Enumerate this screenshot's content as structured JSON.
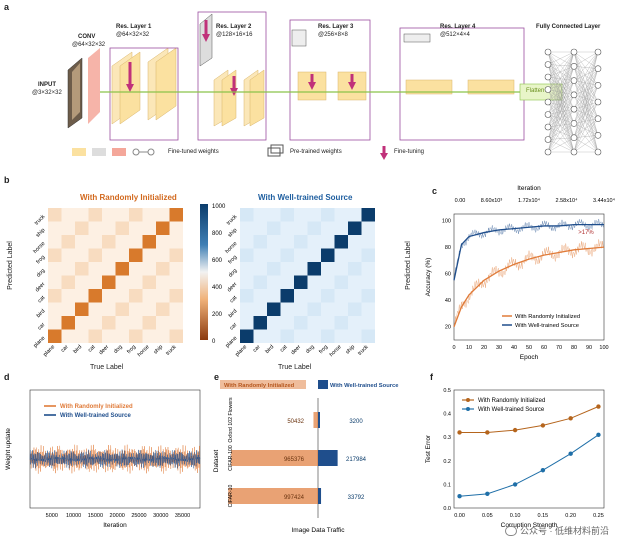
{
  "panel_labels": {
    "a": "a",
    "b": "b",
    "c": "c",
    "d": "d",
    "e": "e",
    "f": "f"
  },
  "arch": {
    "input_title": "INPUT",
    "input_dim": "@3×32×32",
    "conv_title": "CONV",
    "conv_dim": "@64×32×32",
    "res1_title": "Res. Layer 1",
    "res1_dim": "@64×32×32",
    "res2_title": "Res. Layer 2",
    "res2_dim": "@128×16×16",
    "res3_title": "Res. Layer 3",
    "res3_dim": "@256×8×8",
    "res4_title": "Res. Layer 4",
    "res4_dim": "@512×4×4",
    "fc_title": "Fully Connected Layer",
    "flatten": "Flatten",
    "legend_finetuned": "Fine-tuned weights",
    "legend_pretrained": "Pre-trained weights",
    "legend_finetuning": "Fine-tuning"
  },
  "confusion": {
    "left_title": "With Randomly Initialized",
    "right_title": "With Well-trained Source",
    "xlabel": "True Label",
    "ylabel": "Predicted Label",
    "classes": [
      "plane",
      "car",
      "bird",
      "cat",
      "deer",
      "dog",
      "frog",
      "horse",
      "ship",
      "truck"
    ],
    "colorbar_ticks": [
      "1000",
      "800",
      "600",
      "400",
      "200",
      "0"
    ],
    "accent_left": "#d2691e",
    "accent_right": "#0b3c6b"
  },
  "chart_data": [
    {
      "type": "line",
      "panel": "c",
      "title": "",
      "xlabel": "Epoch",
      "ylabel": "Accuracy (%)",
      "top_label": "Iteration",
      "top_ticks": [
        "0.00",
        "8.60x10³",
        "1.72x10⁴",
        "2.58x10⁴",
        "3.44x10⁴"
      ],
      "x_ticks": [
        "0",
        "10",
        "20",
        "30",
        "40",
        "50",
        "60",
        "70",
        "80",
        "90",
        "100"
      ],
      "y_ticks": [
        "20",
        "40",
        "60",
        "80",
        "100"
      ],
      "xlim": [
        0,
        100
      ],
      "ylim": [
        10,
        105
      ],
      "annotation": ">17%",
      "series": [
        {
          "name": "With Randomly Initialized",
          "color": "#e07b39",
          "x": [
            0,
            5,
            10,
            20,
            30,
            40,
            50,
            60,
            70,
            80,
            90,
            100
          ],
          "values": [
            20,
            35,
            44,
            55,
            62,
            67,
            71,
            74,
            76,
            78,
            79,
            80
          ]
        },
        {
          "name": "With Well-trained Source",
          "color": "#1f4e8c",
          "x": [
            0,
            5,
            10,
            20,
            30,
            40,
            50,
            60,
            70,
            80,
            90,
            100
          ],
          "values": [
            55,
            82,
            88,
            91,
            93,
            94,
            95,
            96,
            96,
            97,
            97,
            97
          ]
        }
      ]
    },
    {
      "type": "line",
      "panel": "d",
      "xlabel": "Iteration",
      "ylabel": "Weight update",
      "x_ticks": [
        "5000",
        "10000",
        "15000",
        "20000",
        "25000",
        "30000",
        "35000"
      ],
      "xlim": [
        0,
        39000
      ],
      "series": [
        {
          "name": "With Randomly Initialized",
          "color": "#e07b39"
        },
        {
          "name": "With Well-trained Source",
          "color": "#1f4e8c"
        }
      ]
    },
    {
      "type": "bar",
      "panel": "e",
      "xlabel": "Image Data Traffic",
      "ylabel": "Dataset",
      "categories": [
        "Oxford 102 Flowers",
        "CIFAR-100",
        "CIFAR-10"
      ],
      "series": [
        {
          "name": "With Randomly Initialized",
          "color": "#e07b39",
          "values": [
            50432,
            965376,
            997424
          ]
        },
        {
          "name": "With Well-trained Source",
          "color": "#1f4e8c",
          "values": [
            3200,
            217984,
            33792
          ]
        }
      ],
      "value_labels_left": [
        "50432",
        "965376",
        "997424"
      ],
      "value_labels_right": [
        "3200",
        "217984",
        "33792"
      ]
    },
    {
      "type": "line",
      "panel": "f",
      "xlabel": "Corruption Strength",
      "ylabel": "Test Error",
      "x": [
        0.0,
        0.05,
        0.1,
        0.15,
        0.2,
        0.25
      ],
      "x_ticks": [
        "0.00",
        "0.05",
        "0.10",
        "0.15",
        "0.20",
        "0.25"
      ],
      "y_ticks": [
        "0.0",
        "0.1",
        "0.2",
        "0.3",
        "0.4",
        "0.5"
      ],
      "xlim": [
        -0.01,
        0.26
      ],
      "ylim": [
        0,
        0.5
      ],
      "series": [
        {
          "name": "With Randomly Initialized",
          "color": "#b5651d",
          "values": [
            0.32,
            0.32,
            0.33,
            0.35,
            0.38,
            0.43
          ]
        },
        {
          "name": "With Well-trained Source",
          "color": "#1f6fa8",
          "values": [
            0.05,
            0.06,
            0.1,
            0.16,
            0.23,
            0.31
          ]
        }
      ]
    }
  ],
  "watermark": "公众号 · 低维材料前沿"
}
